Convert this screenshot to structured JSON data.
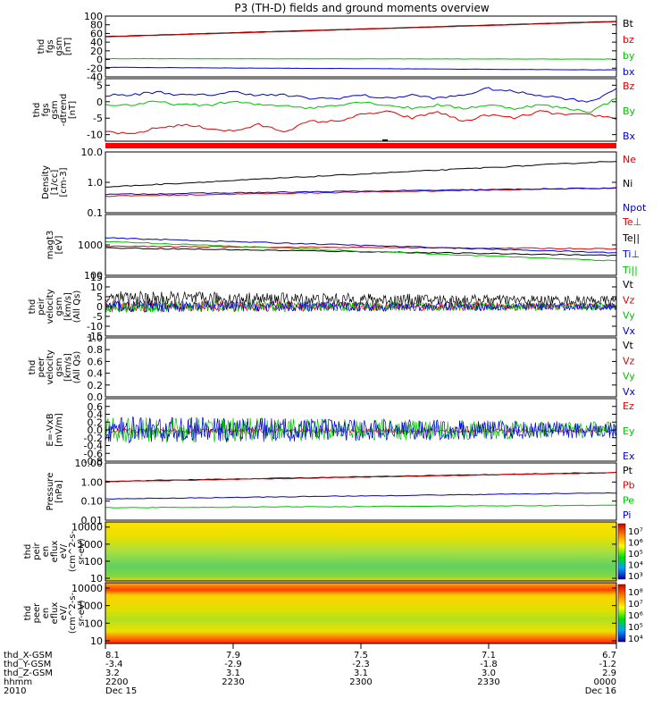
{
  "title": "P3 (TH-D) fields and ground moments overview",
  "colors": {
    "black": "#000000",
    "red": "#e00000",
    "green": "#00c000",
    "blue": "#0000d0",
    "sep": "#ff0000"
  },
  "chart_data": [
    {
      "type": "line",
      "name": "fgs_gsm",
      "ylabel": [
        "thd",
        "fgs",
        "gsm",
        "[nT]"
      ],
      "ylim": [
        -40,
        100
      ],
      "ticks": [
        "100",
        "80",
        "60",
        "40",
        "20",
        "0",
        "-20",
        "-40"
      ],
      "tick_values": [
        100,
        80,
        60,
        40,
        20,
        0,
        -20,
        -40
      ],
      "series": [
        {
          "name": "Bt",
          "color": "#000000",
          "x": [
            0,
            1
          ],
          "y": [
            53,
            88
          ]
        },
        {
          "name": "bz",
          "color": "#e00000",
          "x": [
            0,
            1
          ],
          "y": [
            52,
            87
          ]
        },
        {
          "name": "by",
          "color": "#00c000",
          "x": [
            0,
            1
          ],
          "y": [
            2,
            1
          ]
        },
        {
          "name": "bx",
          "color": "#0000d0",
          "x": [
            0,
            1
          ],
          "y": [
            -18,
            -24
          ]
        }
      ]
    },
    {
      "type": "line",
      "name": "fgs_gsm_dtrend",
      "ylabel": [
        "thd",
        "fgs",
        "gsm",
        "-dtrend",
        "[nT]"
      ],
      "ylim": [
        -12,
        7
      ],
      "ticks": [
        "5",
        "0",
        "-5",
        "-10"
      ],
      "tick_values": [
        5,
        0,
        -5,
        -10
      ],
      "series": [
        {
          "name": "Bz",
          "color": "#e00000",
          "x": [
            0,
            0.05,
            0.1,
            0.15,
            0.2,
            0.25,
            0.3,
            0.35,
            0.4,
            0.45,
            0.5,
            0.55,
            0.6,
            0.65,
            0.7,
            0.75,
            0.8,
            0.85,
            0.9,
            0.95,
            1
          ],
          "y": [
            -9,
            -10,
            -8,
            -7,
            -8,
            -9,
            -7,
            -9,
            -6,
            -6,
            -4,
            -3,
            -5,
            -3,
            -6,
            -4,
            -5,
            -3,
            -4,
            -4,
            -5
          ]
        },
        {
          "name": "By",
          "color": "#00c000",
          "x": [
            0,
            0.05,
            0.1,
            0.15,
            0.2,
            0.25,
            0.3,
            0.35,
            0.4,
            0.45,
            0.5,
            0.55,
            0.6,
            0.65,
            0.7,
            0.75,
            0.8,
            0.85,
            0.9,
            0.95,
            1
          ],
          "y": [
            -1,
            -1,
            0,
            -1,
            -1,
            0,
            -1,
            -1,
            -2,
            -1,
            0,
            -1,
            -2,
            -1,
            -2,
            -1,
            -2,
            -1,
            -2,
            -3,
            1
          ]
        },
        {
          "name": "Bx",
          "color": "#0000d0",
          "x": [
            0,
            0.05,
            0.1,
            0.15,
            0.2,
            0.25,
            0.3,
            0.35,
            0.4,
            0.45,
            0.5,
            0.55,
            0.6,
            0.65,
            0.7,
            0.75,
            0.8,
            0.85,
            0.9,
            0.95,
            1
          ],
          "y": [
            2,
            2,
            3,
            2,
            2,
            3,
            2,
            2,
            1,
            1,
            2,
            1,
            2,
            1,
            2,
            4,
            3,
            2,
            1,
            0,
            4
          ]
        }
      ]
    },
    {
      "type": "line",
      "name": "density",
      "log": true,
      "ylabel": [
        "Density",
        "[1/cc]",
        "[cm-3]"
      ],
      "ylim": [
        0.1,
        10
      ],
      "ticks": [
        "10.0",
        "1.0",
        "0.1"
      ],
      "tick_values": [
        10,
        1,
        0.1
      ],
      "series": [
        {
          "name": "Ne",
          "color": "#e00000",
          "x": [
            0,
            1
          ],
          "y": [
            0.35,
            0.65
          ]
        },
        {
          "name": "Ni",
          "color": "#000000",
          "x": [
            0,
            1
          ],
          "y": [
            0.7,
            5.0
          ]
        },
        {
          "name": "Npot",
          "color": "#0000d0",
          "x": [
            0,
            1
          ],
          "y": [
            0.4,
            0.65
          ]
        }
      ]
    },
    {
      "type": "line",
      "name": "temperature",
      "log": true,
      "ylabel": [
        "magt3",
        "[eV]"
      ],
      "ylim": [
        100,
        10000
      ],
      "ticks": [
        "1000",
        "100"
      ],
      "tick_values": [
        1000,
        100
      ],
      "series": [
        {
          "name": "Te⊥",
          "color": "#e00000",
          "x": [
            0,
            1
          ],
          "y": [
            900,
            750
          ]
        },
        {
          "name": "Te||",
          "color": "#000000",
          "x": [
            0,
            1
          ],
          "y": [
            800,
            450
          ]
        },
        {
          "name": "Ti⊥",
          "color": "#0000d0",
          "x": [
            0,
            1
          ],
          "y": [
            1700,
            550
          ]
        },
        {
          "name": "Ti||",
          "color": "#00c000",
          "x": [
            0,
            1
          ],
          "y": [
            1300,
            300
          ]
        }
      ]
    },
    {
      "type": "line",
      "name": "peir_velocity",
      "ylabel": [
        "thd",
        "peir",
        "velocity",
        "gsm",
        "[km/s]",
        "(All Qs)"
      ],
      "ylim": [
        -15,
        15
      ],
      "ticks": [
        "15",
        "10",
        "5",
        "0",
        "-5",
        "-10",
        "-15"
      ],
      "tick_values": [
        15,
        10,
        5,
        0,
        -5,
        -10,
        -15
      ],
      "series": [
        {
          "name": "Vt",
          "color": "#000000",
          "x": [
            0,
            1
          ],
          "y": [
            4,
            3
          ]
        },
        {
          "name": "Vz",
          "color": "#e00000",
          "x": [
            0,
            1
          ],
          "y": [
            0,
            0
          ]
        },
        {
          "name": "Vy",
          "color": "#00c000",
          "x": [
            0,
            1
          ],
          "y": [
            0,
            0
          ]
        },
        {
          "name": "Vx",
          "color": "#0000d0",
          "x": [
            0,
            1
          ],
          "y": [
            0,
            0
          ]
        }
      ]
    },
    {
      "type": "line",
      "name": "peer_velocity",
      "ylabel": [
        "thd",
        "peer",
        "velocity",
        "gsm",
        "[km/s]",
        "(All Qs)"
      ],
      "ylim": [
        0,
        1
      ],
      "ticks": [
        "1.0",
        "0.8",
        "0.6",
        "0.4",
        "0.2",
        "0.0"
      ],
      "tick_values": [
        1,
        0.8,
        0.6,
        0.4,
        0.2,
        0
      ],
      "series": [
        {
          "name": "Vt",
          "color": "#000000",
          "x": [],
          "y": []
        },
        {
          "name": "Vz",
          "color": "#e00000",
          "x": [],
          "y": []
        },
        {
          "name": "Vy",
          "color": "#00c000",
          "x": [],
          "y": []
        },
        {
          "name": "Vx",
          "color": "#0000d0",
          "x": [],
          "y": []
        }
      ]
    },
    {
      "type": "line",
      "name": "efield",
      "ylabel": [
        "E=-VxB",
        "[mV/m]"
      ],
      "ylim": [
        -0.8,
        0.8
      ],
      "ticks": [
        "0.6",
        "0.4",
        "0.2",
        "0.0",
        "-0.2",
        "-0.4",
        "-0.6",
        "-0.8"
      ],
      "tick_values": [
        0.6,
        0.4,
        0.2,
        0,
        -0.2,
        -0.4,
        -0.6,
        -0.8
      ],
      "series": [
        {
          "name": "Ez",
          "color": "#e00000",
          "x": [
            0,
            1
          ],
          "y": [
            -0.02,
            -0.03
          ]
        },
        {
          "name": "Ey",
          "color": "#00c000",
          "x": [
            0,
            1
          ],
          "y": [
            0,
            0
          ]
        },
        {
          "name": "Ex",
          "color": "#0000d0",
          "x": [
            0,
            1
          ],
          "y": [
            0,
            0
          ]
        }
      ]
    },
    {
      "type": "line",
      "name": "pressure",
      "log": true,
      "ylabel": [
        "Pressure",
        "[nPa]"
      ],
      "ylim": [
        0.01,
        10
      ],
      "ticks": [
        "10.00",
        "1.00",
        "0.10",
        "0.01"
      ],
      "tick_values": [
        10,
        1,
        0.1,
        0.01
      ],
      "series": [
        {
          "name": "Pt",
          "color": "#000000",
          "x": [
            0,
            1
          ],
          "y": [
            1.1,
            3.2
          ]
        },
        {
          "name": "Pb",
          "color": "#e00000",
          "x": [
            0,
            1
          ],
          "y": [
            1.05,
            3.1
          ]
        },
        {
          "name": "Pe",
          "color": "#00c000",
          "x": [
            0,
            1
          ],
          "y": [
            0.045,
            0.06
          ]
        },
        {
          "name": "Pi",
          "color": "#0000d0",
          "x": [
            0,
            1
          ],
          "y": [
            0.13,
            0.27
          ]
        }
      ]
    },
    {
      "type": "heatmap",
      "name": "peir_en_eflux",
      "ylabel": [
        "thd",
        "peir",
        "en",
        "eflux",
        "eV/",
        "(cm^2-s-",
        "sr-eV)"
      ],
      "ylim": [
        7,
        20000
      ],
      "log": true,
      "ticks": [
        "10000",
        "1000",
        "100",
        "10"
      ],
      "tick_values": [
        10000,
        1000,
        100,
        10
      ],
      "colorbar_ticks": [
        "10⁷",
        "10⁶",
        "10⁵",
        "10⁴",
        "10³"
      ]
    },
    {
      "type": "heatmap",
      "name": "peer_en_eflux",
      "ylabel": [
        "thd",
        "peer",
        "en",
        "eflux",
        "eV/",
        "(cm^2-s-",
        "sr-eV)"
      ],
      "ylim": [
        7,
        20000
      ],
      "log": true,
      "ticks": [
        "10000",
        "1000",
        "100",
        "10"
      ],
      "tick_values": [
        10000,
        1000,
        100,
        10
      ],
      "colorbar_ticks": [
        "10⁸",
        "10⁷",
        "10⁶",
        "10⁵",
        "10⁴"
      ]
    }
  ],
  "xaxis": {
    "row_labels": [
      "thd_X-GSM",
      "thd_Y-GSM",
      "thd_Z-GSM",
      "hhmm",
      "2010"
    ],
    "columns": [
      {
        "values": [
          "8.1",
          "-3.4",
          "3.2",
          "2200",
          "Dec 15"
        ]
      },
      {
        "values": [
          "7.9",
          "-2.9",
          "3.1",
          "2230",
          ""
        ]
      },
      {
        "values": [
          "7.5",
          "-2.3",
          "3.1",
          "2300",
          ""
        ]
      },
      {
        "values": [
          "7.1",
          "-1.8",
          "3.0",
          "2330",
          ""
        ]
      },
      {
        "values": [
          "6.7",
          "-1.2",
          "2.9",
          "0000",
          "Dec 16"
        ]
      }
    ]
  }
}
